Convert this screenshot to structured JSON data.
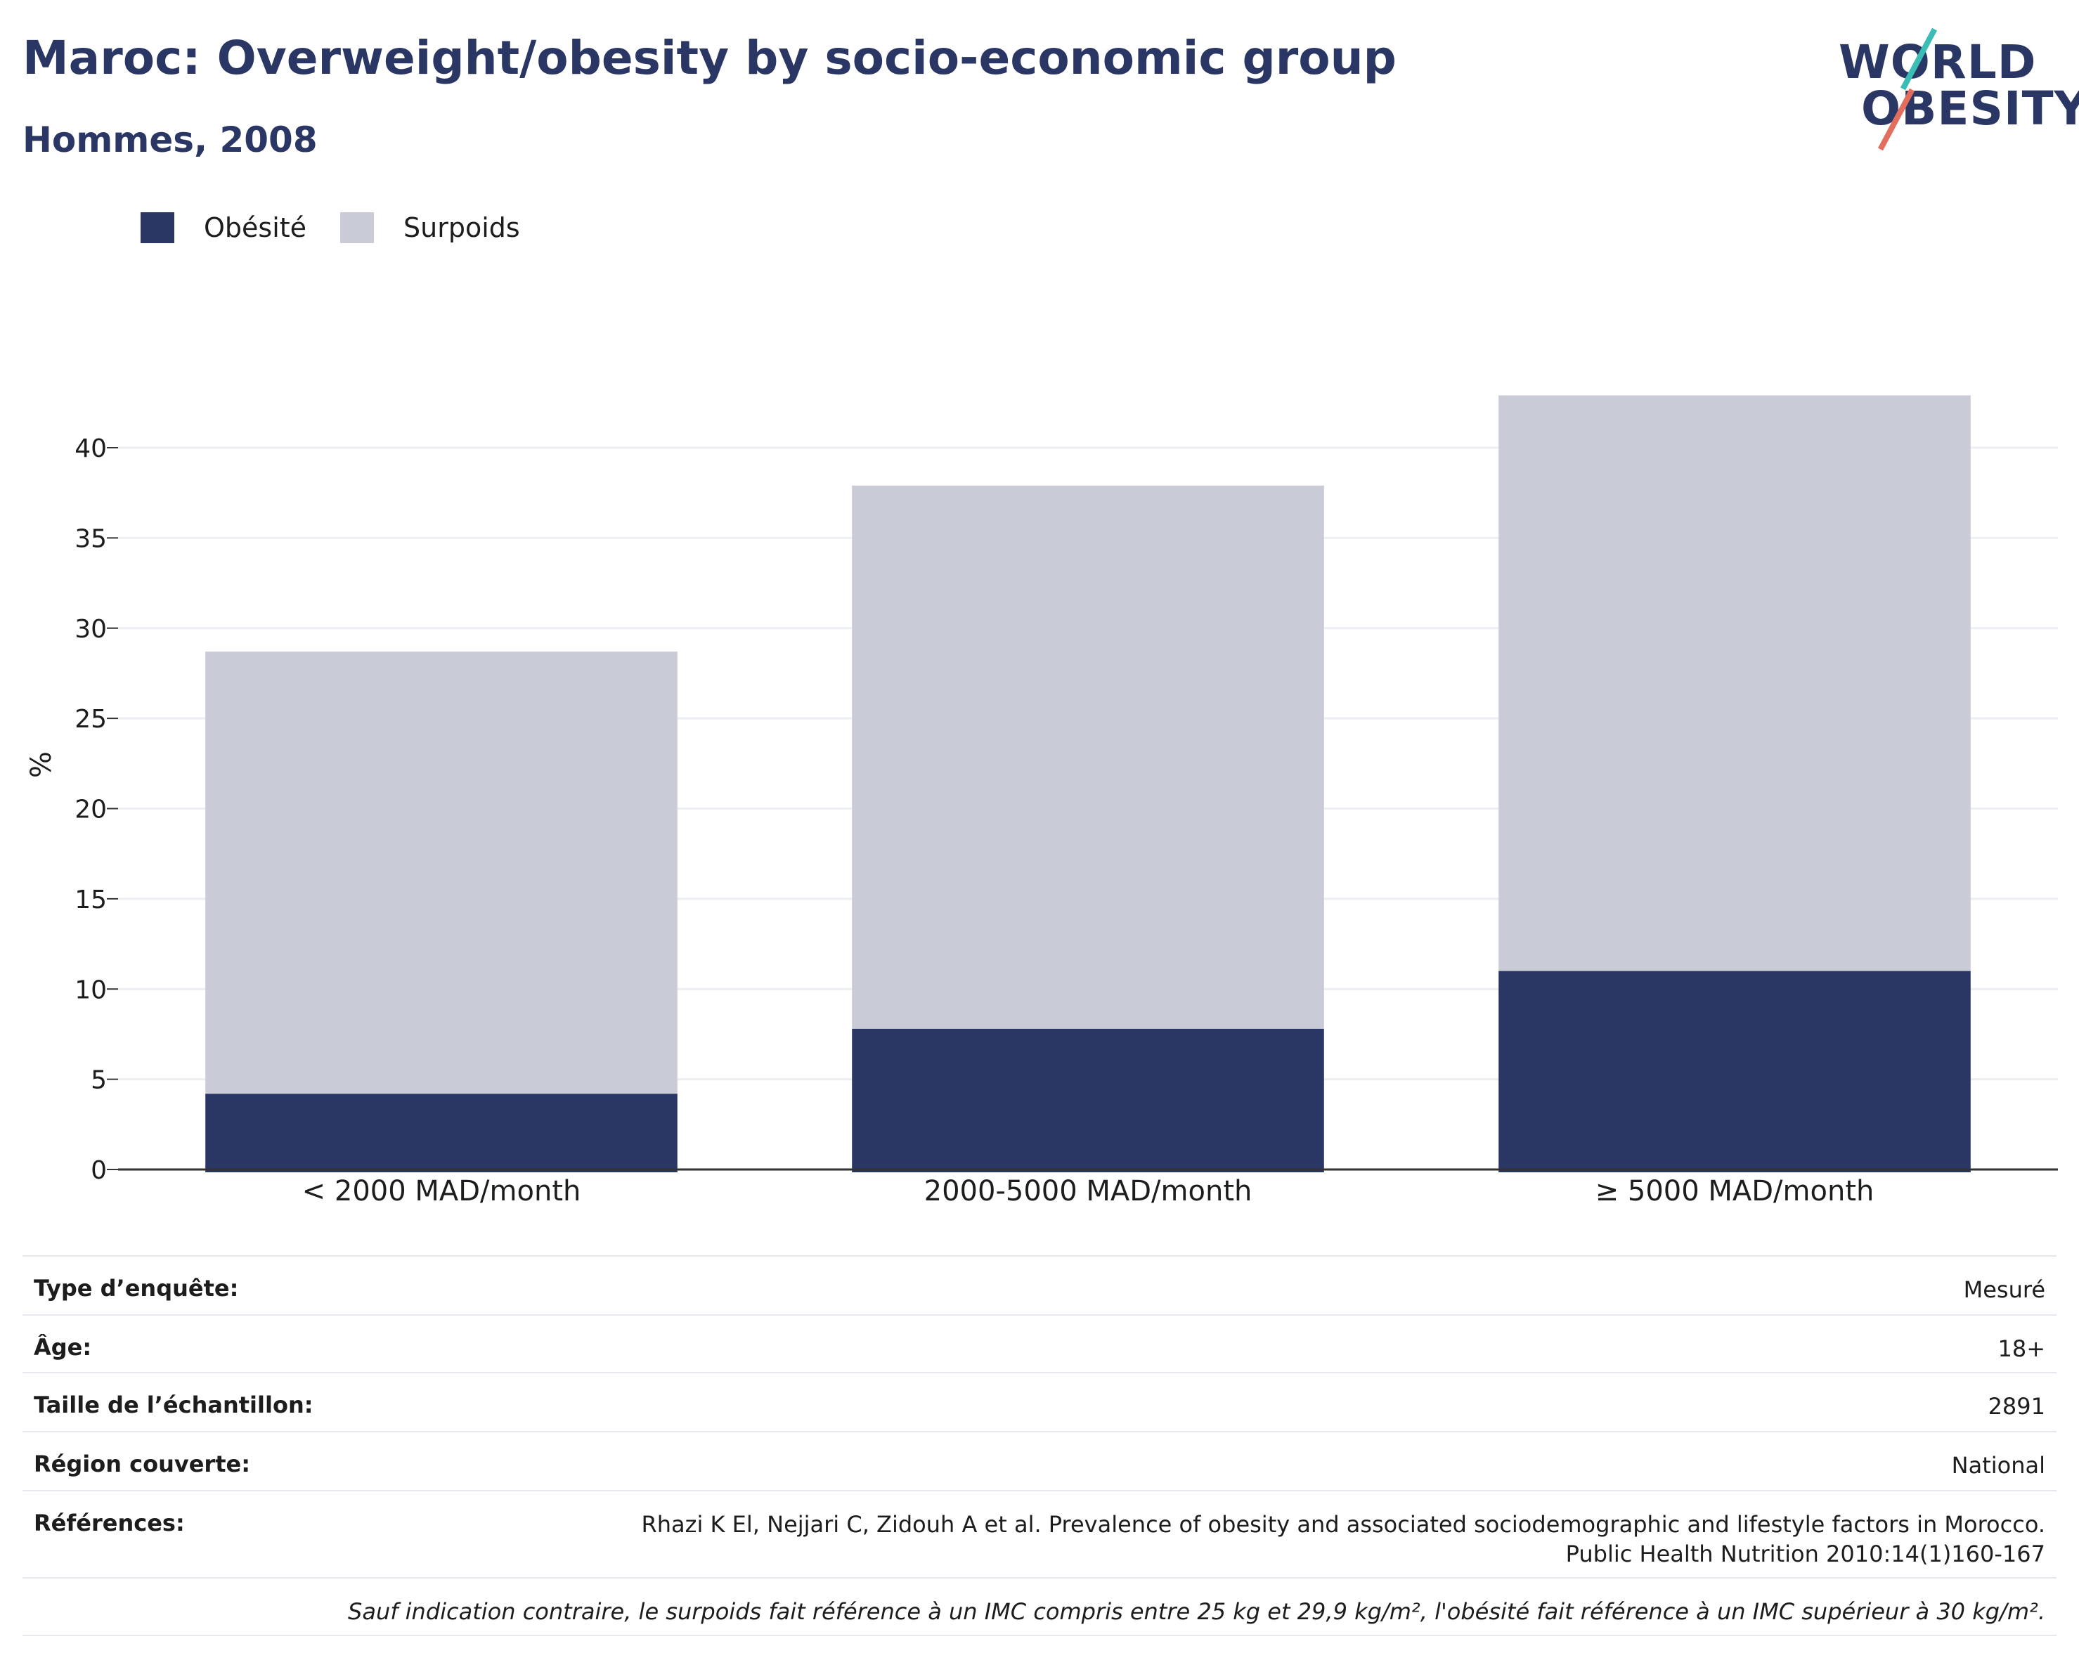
{
  "header": {
    "title": "Maroc: Overweight/obesity by socio-economic group",
    "subtitle": "Hommes, 2008"
  },
  "logo": {
    "line1": "WORLD",
    "line2": "OBESITY",
    "colors": {
      "text": "#2a3663",
      "teal": "#3bbcb4",
      "coral": "#e26f5e"
    }
  },
  "legend": [
    {
      "label": "Obésité",
      "color": "#2a3663"
    },
    {
      "label": "Surpoids",
      "color": "#c9cbd7"
    }
  ],
  "chart_data": {
    "type": "bar",
    "stacked": true,
    "categories": [
      "< 2000 MAD/month",
      "2000-5000 MAD/month",
      "≥ 5000 MAD/month"
    ],
    "series": [
      {
        "name": "Obésité",
        "values": [
          4.2,
          7.8,
          11.0
        ],
        "color": "#2a3663"
      },
      {
        "name": "Surpoids",
        "values": [
          24.5,
          30.1,
          31.9
        ],
        "color": "#c9cbd7"
      }
    ],
    "ylabel": "%",
    "ylim": [
      0,
      43
    ],
    "yticks": [
      0,
      5,
      10,
      15,
      20,
      25,
      30,
      35,
      40
    ],
    "grid": true,
    "legend_position": "top-left"
  },
  "info": {
    "rows": [
      {
        "key": "Type d’enquête:",
        "value": "Mesuré"
      },
      {
        "key": "Âge:",
        "value": "18+"
      },
      {
        "key": "Taille de l’échantillon:",
        "value": "2891"
      },
      {
        "key": "Région couverte:",
        "value": "National"
      },
      {
        "key": "Références:",
        "value": "Rhazi K El, Nejjari C, Zidouh A et al. Prevalence of obesity and associated sociodemographic and lifestyle factors in Morocco. Public Health Nutrition 2010:14(1)160-167"
      }
    ],
    "note": "Sauf indication contraire, le surpoids fait référence à un IMC compris entre 25 kg et 29,9 kg/m², l'obésité fait référence à un IMC supérieur à 30 kg/m²."
  }
}
